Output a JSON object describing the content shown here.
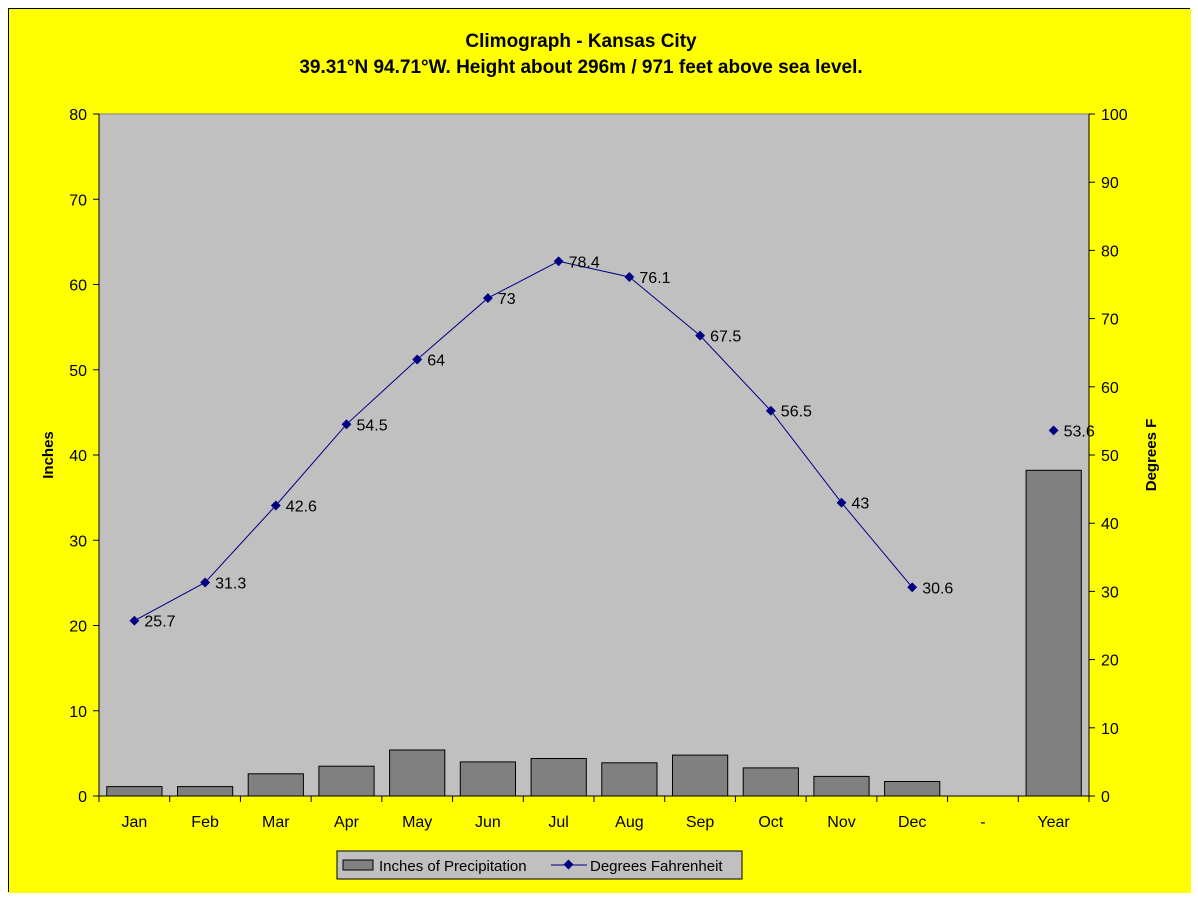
{
  "colors": {
    "background": "#ffff00",
    "plot_area": "#c0c0c0",
    "bar_fill": "#808080",
    "line": "#000080",
    "legend_bg": "#c0c0c0"
  },
  "chart_data": {
    "type": "bar+line",
    "title": "Climograph - Kansas City",
    "subtitle": "39.31°N 94.71°W. Height about 296m / 971 feet above sea level.",
    "categories": [
      "Jan",
      "Feb",
      "Mar",
      "Apr",
      "May",
      "Jun",
      "Jul",
      "Aug",
      "Sep",
      "Oct",
      "Nov",
      "Dec",
      "-",
      "Year"
    ],
    "ylabel_left": "Inches",
    "ylabel_right": "Degrees F",
    "ylim_left": [
      0,
      80
    ],
    "ylim_right": [
      0,
      100
    ],
    "yticks_left": [
      0,
      10,
      20,
      30,
      40,
      50,
      60,
      70,
      80
    ],
    "yticks_right": [
      0,
      10,
      20,
      30,
      40,
      50,
      60,
      70,
      80,
      90,
      100
    ],
    "grid": false,
    "legend_position": "bottom",
    "series": [
      {
        "name": "Inches of Precipitation",
        "type": "bar",
        "axis": "left",
        "values": [
          1.1,
          1.1,
          2.6,
          3.5,
          5.4,
          4.0,
          4.4,
          3.9,
          4.8,
          3.3,
          2.3,
          1.7,
          null,
          38.2
        ]
      },
      {
        "name": "Degrees Fahrenheit",
        "type": "line",
        "axis": "right",
        "values": [
          25.7,
          31.3,
          42.6,
          54.5,
          64,
          73,
          78.4,
          76.1,
          67.5,
          56.5,
          43,
          30.6,
          null,
          53.6
        ],
        "labels": [
          "25.7",
          "31.3",
          "42.6",
          "54.5",
          "64",
          "73",
          "78.4",
          "76.1",
          "67.5",
          "56.5",
          "43",
          "30.6",
          "",
          "53.6"
        ]
      }
    ]
  }
}
